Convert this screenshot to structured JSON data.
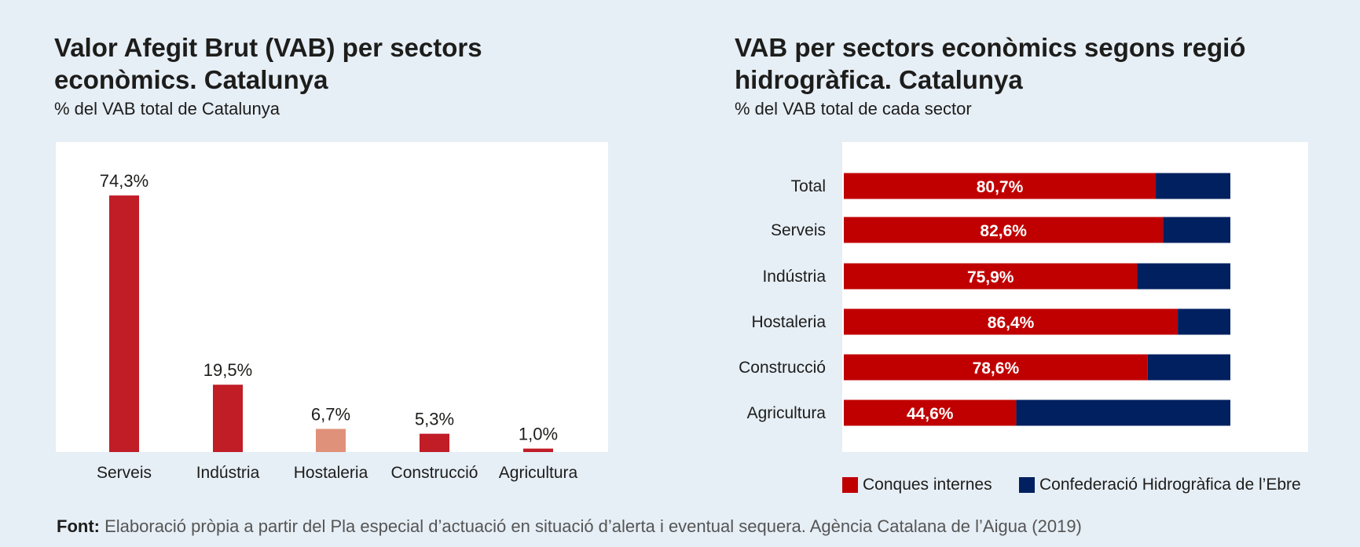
{
  "left_chart": {
    "title_line1": "Valor Afegit Brut (VAB) per sectors",
    "title_line2": "econòmics. Catalunya",
    "subtitle": "% del VAB total de Catalunya"
  },
  "right_chart": {
    "title_line1": "VAB per sectors econòmics segons regió",
    "title_line2": "hidrogràfica. Catalunya",
    "subtitle": "% del VAB total de cada sector"
  },
  "legend": {
    "item1": "Conques internes",
    "item2": "Confederació Hidrogràfica de l’Ebre"
  },
  "source": {
    "label": "Font:",
    "text": "Elaboració pròpia a partir del Pla especial d’actuació en situació d’alerta i eventual sequera. Agència Catalana de l’Aigua (2019)"
  },
  "colors": {
    "bar_red": "#c01d27",
    "bar_highlight": "#e0917a",
    "conques": "#c00000",
    "ebre": "#002060",
    "background": "#e6eef6"
  },
  "chart_data": [
    {
      "type": "bar",
      "title": "Valor Afegit Brut (VAB) per sectors econòmics. Catalunya",
      "subtitle": "% del VAB total de Catalunya",
      "categories": [
        "Serveis",
        "Indústria",
        "Hostaleria",
        "Construcció",
        "Agricultura"
      ],
      "values": [
        74.3,
        19.5,
        6.7,
        5.3,
        1.0
      ],
      "value_labels": [
        "74,3%",
        "19,5%",
        "6,7%",
        "5,3%",
        "1,0%"
      ],
      "highlight_index": 2,
      "ylim": [
        0,
        80
      ],
      "grid": false
    },
    {
      "type": "bar",
      "orientation": "horizontal",
      "stacked": true,
      "title": "VAB per sectors econòmics segons regió hidrogràfica. Catalunya",
      "subtitle": "% del VAB total de cada sector",
      "categories": [
        "Total",
        "Serveis",
        "Indústria",
        "Hostaleria",
        "Construcció",
        "Agricultura"
      ],
      "series": [
        {
          "name": "Conques internes",
          "values": [
            80.7,
            82.6,
            75.9,
            86.4,
            78.6,
            44.6
          ],
          "value_labels": [
            "80,7%",
            "82,6%",
            "75,9%",
            "86,4%",
            "78,6%",
            "44,6%"
          ]
        },
        {
          "name": "Confederació Hidrogràfica de l’Ebre",
          "values": [
            19.3,
            17.4,
            24.1,
            13.6,
            21.4,
            55.4
          ]
        }
      ],
      "xlim": [
        0,
        100
      ],
      "legend_position": "bottom"
    }
  ]
}
